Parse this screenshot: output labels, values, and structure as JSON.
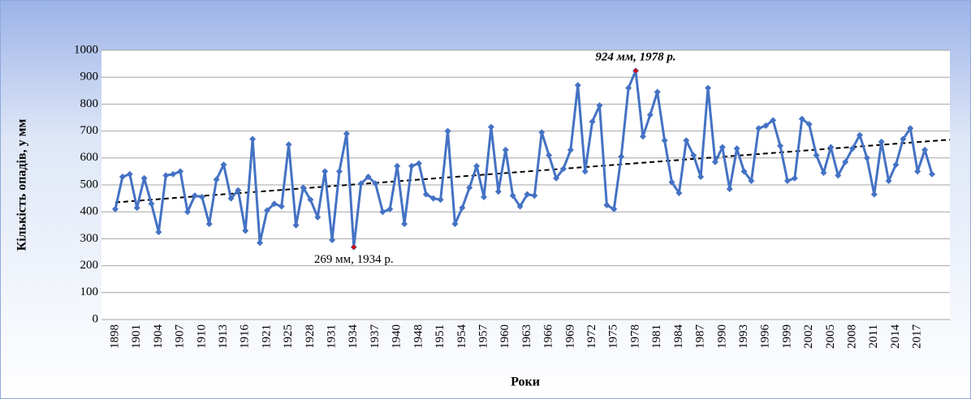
{
  "chart_data": {
    "type": "line",
    "y_label": "Кількість опадів, у мм",
    "x_label": "Роки",
    "categories": [
      "1898",
      null,
      null,
      "1901",
      null,
      null,
      "1904",
      null,
      null,
      "1907",
      null,
      null,
      "1910",
      null,
      null,
      "1913",
      null,
      null,
      "1916",
      null,
      null,
      "1921",
      null,
      null,
      "1925",
      null,
      null,
      "1928",
      null,
      null,
      "1931",
      null,
      null,
      "1934",
      null,
      null,
      "1937",
      null,
      null,
      "1940",
      null,
      null,
      "1948",
      null,
      null,
      "1951",
      null,
      null,
      "1954",
      null,
      null,
      "1957",
      null,
      null,
      "1960",
      null,
      null,
      "1963",
      null,
      null,
      "1966",
      null,
      null,
      "1969",
      null,
      null,
      "1972",
      null,
      null,
      "1975",
      null,
      null,
      "1978",
      null,
      null,
      "1981",
      null,
      null,
      "1984",
      null,
      null,
      "1987",
      null,
      null,
      "1990",
      null,
      null,
      "1993",
      null,
      null,
      "1996",
      null,
      null,
      "1999",
      null,
      null,
      "2002",
      null,
      null,
      "2005",
      null,
      null,
      "2008",
      null,
      null,
      "2011",
      null,
      null,
      "2014",
      null,
      null,
      "2017",
      null,
      null
    ],
    "series": [
      {
        "name": "Кількість опадів",
        "color": "#4472c4",
        "values": [
          410,
          530,
          540,
          415,
          525,
          430,
          325,
          535,
          540,
          550,
          400,
          460,
          455,
          355,
          520,
          575,
          450,
          480,
          330,
          670,
          285,
          405,
          430,
          420,
          650,
          350,
          490,
          445,
          380,
          550,
          295,
          550,
          690,
          269,
          505,
          530,
          505,
          400,
          410,
          570,
          355,
          570,
          580,
          465,
          450,
          445,
          700,
          355,
          415,
          490,
          570,
          455,
          715,
          475,
          630,
          460,
          420,
          465,
          460,
          695,
          610,
          525,
          560,
          630,
          870,
          550,
          735,
          795,
          425,
          410,
          605,
          860,
          924,
          680,
          760,
          845,
          665,
          510,
          470,
          665,
          610,
          530,
          860,
          585,
          640,
          485,
          635,
          550,
          515,
          710,
          720,
          740,
          645,
          515,
          525,
          745,
          725,
          610,
          545,
          640,
          535,
          585,
          635,
          685,
          600,
          465,
          660,
          515,
          575,
          670,
          710,
          550,
          630,
          540
        ]
      }
    ],
    "trend": {
      "values": [
        435,
        668
      ],
      "color": "#000000"
    },
    "annotations": [
      {
        "text": "924 мм, 1978 р.",
        "index": 72,
        "color": "#e00000"
      },
      {
        "text": "269 мм, 1934 р.",
        "index": 33,
        "color": "#e00000"
      }
    ],
    "ylim": [
      0,
      1000
    ],
    "yticks": [
      0,
      100,
      200,
      300,
      400,
      500,
      600,
      700,
      800,
      900,
      1000
    ],
    "grid": true
  }
}
